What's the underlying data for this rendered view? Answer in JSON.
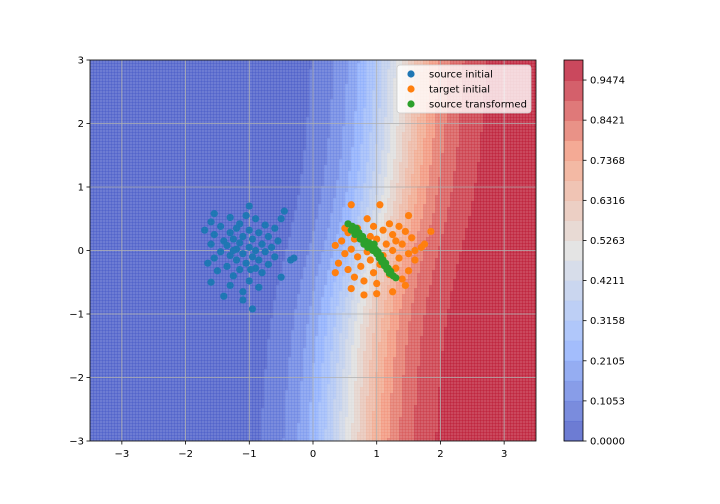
{
  "chart_data": {
    "type": "scatter",
    "title": "",
    "xlabel": "",
    "ylabel": "",
    "xlim": [
      -3.5,
      3.5
    ],
    "ylim": [
      -3,
      3
    ],
    "grid": true,
    "legend_position": "top-right",
    "x_ticks": [
      "−3",
      "−2",
      "−1",
      "0",
      "1",
      "2",
      "3"
    ],
    "y_ticks": [
      "−3",
      "−2",
      "−1",
      "0",
      "1",
      "2",
      "3"
    ],
    "x_tick_values": [
      -3,
      -2,
      -1,
      0,
      1,
      2,
      3
    ],
    "y_tick_values": [
      -3,
      -2,
      -1,
      0,
      1,
      2,
      3
    ],
    "series": [
      {
        "name": "source initial",
        "color": "#1f77b4",
        "points": [
          [
            -1.0,
            0.7
          ],
          [
            -0.45,
            0.62
          ],
          [
            -1.55,
            0.58
          ],
          [
            -1.3,
            0.52
          ],
          [
            -1.05,
            0.55
          ],
          [
            -0.9,
            0.5
          ],
          [
            -1.6,
            0.45
          ],
          [
            -0.5,
            0.5
          ],
          [
            -1.15,
            0.42
          ],
          [
            -0.75,
            0.4
          ],
          [
            -1.45,
            0.38
          ],
          [
            -1.2,
            0.35
          ],
          [
            -0.6,
            0.35
          ],
          [
            -1.7,
            0.32
          ],
          [
            -1.0,
            0.32
          ],
          [
            -1.3,
            0.28
          ],
          [
            -0.85,
            0.28
          ],
          [
            -1.55,
            0.25
          ],
          [
            -1.1,
            0.22
          ],
          [
            -0.7,
            0.22
          ],
          [
            -1.25,
            0.18
          ],
          [
            -0.95,
            0.18
          ],
          [
            -1.4,
            0.15
          ],
          [
            -0.55,
            0.15
          ],
          [
            -1.15,
            0.12
          ],
          [
            -0.8,
            0.1
          ],
          [
            -1.6,
            0.1
          ],
          [
            -1.35,
            0.08
          ],
          [
            -1.0,
            0.05
          ],
          [
            -0.65,
            0.05
          ],
          [
            -1.2,
            0.02
          ],
          [
            -0.9,
            0.0
          ],
          [
            -1.45,
            -0.02
          ],
          [
            -0.75,
            -0.02
          ],
          [
            -1.1,
            -0.05
          ],
          [
            -0.35,
            -0.15
          ],
          [
            -1.3,
            -0.08
          ],
          [
            -0.95,
            -0.1
          ],
          [
            -0.6,
            -0.1
          ],
          [
            -1.55,
            -0.12
          ],
          [
            -1.2,
            -0.15
          ],
          [
            -0.85,
            -0.15
          ],
          [
            -1.65,
            -0.2
          ],
          [
            -1.05,
            -0.2
          ],
          [
            -0.7,
            -0.22
          ],
          [
            -1.35,
            -0.25
          ],
          [
            -0.9,
            -0.28
          ],
          [
            -1.15,
            -0.3
          ],
          [
            -1.5,
            -0.32
          ],
          [
            -0.8,
            -0.35
          ],
          [
            -1.25,
            -0.4
          ],
          [
            -0.5,
            -0.42
          ],
          [
            -1.6,
            -0.5
          ],
          [
            -1.0,
            -0.48
          ],
          [
            -1.3,
            -0.55
          ],
          [
            -0.85,
            -0.58
          ],
          [
            -1.1,
            -0.65
          ],
          [
            -1.4,
            -0.72
          ],
          [
            -1.1,
            -0.78
          ],
          [
            -0.95,
            -0.92
          ],
          [
            -0.3,
            -0.12
          ],
          [
            -1.25,
            0.0
          ],
          [
            -0.98,
            -0.3
          ]
        ]
      },
      {
        "name": "target initial",
        "color": "#ff7f0e",
        "points": [
          [
            0.6,
            0.72
          ],
          [
            1.05,
            0.72
          ],
          [
            1.5,
            0.55
          ],
          [
            0.85,
            0.5
          ],
          [
            1.2,
            0.42
          ],
          [
            1.35,
            0.38
          ],
          [
            0.95,
            0.38
          ],
          [
            0.7,
            0.35
          ],
          [
            1.1,
            0.32
          ],
          [
            1.45,
            0.3
          ],
          [
            1.85,
            0.3
          ],
          [
            0.55,
            0.28
          ],
          [
            1.25,
            0.25
          ],
          [
            0.9,
            0.22
          ],
          [
            1.55,
            0.2
          ],
          [
            0.65,
            0.18
          ],
          [
            1.0,
            0.18
          ],
          [
            1.3,
            0.15
          ],
          [
            0.45,
            0.15
          ],
          [
            0.8,
            0.12
          ],
          [
            1.15,
            0.1
          ],
          [
            1.4,
            0.1
          ],
          [
            0.35,
            0.08
          ],
          [
            0.95,
            0.05
          ],
          [
            1.7,
            0.05
          ],
          [
            0.6,
            0.02
          ],
          [
            1.25,
            0.0
          ],
          [
            0.85,
            -0.02
          ],
          [
            1.5,
            -0.05
          ],
          [
            0.5,
            -0.05
          ],
          [
            1.1,
            -0.08
          ],
          [
            0.7,
            -0.1
          ],
          [
            1.35,
            -0.12
          ],
          [
            0.9,
            -0.15
          ],
          [
            1.6,
            -0.15
          ],
          [
            0.4,
            -0.2
          ],
          [
            1.05,
            -0.22
          ],
          [
            0.75,
            -0.25
          ],
          [
            1.3,
            -0.28
          ],
          [
            0.55,
            -0.3
          ],
          [
            1.5,
            -0.32
          ],
          [
            0.35,
            -0.35
          ],
          [
            0.95,
            -0.35
          ],
          [
            1.2,
            -0.38
          ],
          [
            0.65,
            -0.42
          ],
          [
            1.4,
            -0.45
          ],
          [
            0.8,
            -0.48
          ],
          [
            1.0,
            -0.52
          ],
          [
            1.45,
            -0.55
          ],
          [
            0.6,
            -0.6
          ],
          [
            1.25,
            -0.65
          ],
          [
            1.0,
            -0.68
          ],
          [
            0.8,
            -0.7
          ],
          [
            1.6,
            0.0
          ],
          [
            1.75,
            0.1
          ],
          [
            0.5,
            0.35
          ]
        ]
      },
      {
        "name": "source transformed",
        "color": "#2ca02c",
        "points": [
          [
            0.55,
            0.42
          ],
          [
            0.62,
            0.38
          ],
          [
            0.68,
            0.35
          ],
          [
            0.6,
            0.32
          ],
          [
            0.72,
            0.28
          ],
          [
            0.66,
            0.25
          ],
          [
            0.78,
            0.22
          ],
          [
            0.74,
            0.18
          ],
          [
            0.82,
            0.15
          ],
          [
            0.88,
            0.12
          ],
          [
            0.8,
            0.1
          ],
          [
            0.92,
            0.08
          ],
          [
            0.86,
            0.05
          ],
          [
            0.98,
            0.02
          ],
          [
            0.94,
            0.0
          ],
          [
            1.02,
            -0.02
          ],
          [
            1.0,
            -0.05
          ],
          [
            1.06,
            -0.08
          ],
          [
            1.04,
            -0.12
          ],
          [
            1.1,
            -0.15
          ],
          [
            1.08,
            -0.18
          ],
          [
            1.14,
            -0.2
          ],
          [
            1.12,
            -0.24
          ],
          [
            1.18,
            -0.28
          ],
          [
            1.16,
            -0.3
          ],
          [
            1.22,
            -0.33
          ],
          [
            1.2,
            -0.36
          ],
          [
            1.26,
            -0.4
          ],
          [
            1.3,
            -0.43
          ],
          [
            0.96,
            0.1
          ],
          [
            1.05,
            -0.1
          ]
        ]
      }
    ],
    "colorbar": {
      "ticks": [
        "0.0000",
        "0.1053",
        "0.2105",
        "0.3158",
        "0.4211",
        "0.5263",
        "0.6316",
        "0.7368",
        "0.8421",
        "0.9474"
      ],
      "tick_values": [
        0.0,
        0.1053,
        0.2105,
        0.3158,
        0.4211,
        0.5263,
        0.6316,
        0.7368,
        0.8421,
        0.9474
      ],
      "vmin": 0.0,
      "vmax": 1.0,
      "levels": 19,
      "colormap": "coolwarm"
    }
  }
}
